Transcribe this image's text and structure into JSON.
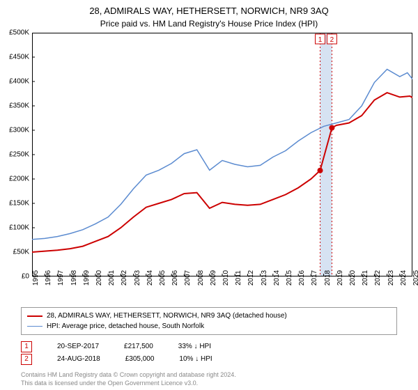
{
  "title": "28, ADMIRALS WAY, HETHERSETT, NORWICH, NR9 3AQ",
  "subtitle": "Price paid vs. HM Land Registry's House Price Index (HPI)",
  "chart": {
    "type": "line",
    "background_color": "#ffffff",
    "ylim": [
      0,
      500
    ],
    "ytick_step": 50,
    "y_prefix": "£",
    "y_suffix": "K",
    "x_years": [
      1995,
      1996,
      1997,
      1998,
      1999,
      2000,
      2001,
      2002,
      2003,
      2004,
      2005,
      2006,
      2007,
      2008,
      2009,
      2010,
      2011,
      2012,
      2013,
      2014,
      2015,
      2016,
      2017,
      2018,
      2019,
      2020,
      2021,
      2022,
      2023,
      2024,
      2025
    ],
    "series": [
      {
        "id": "property",
        "label": "28, ADMIRALS WAY, HETHERSETT, NORWICH, NR9 3AQ (detached house)",
        "color": "#cc0000",
        "width": 2,
        "points": [
          [
            1995,
            50
          ],
          [
            1996,
            52
          ],
          [
            1997,
            54
          ],
          [
            1998,
            57
          ],
          [
            1999,
            62
          ],
          [
            2000,
            72
          ],
          [
            2001,
            82
          ],
          [
            2002,
            100
          ],
          [
            2003,
            122
          ],
          [
            2004,
            142
          ],
          [
            2005,
            150
          ],
          [
            2006,
            158
          ],
          [
            2007,
            170
          ],
          [
            2008,
            172
          ],
          [
            2009,
            140
          ],
          [
            2010,
            152
          ],
          [
            2011,
            148
          ],
          [
            2012,
            146
          ],
          [
            2013,
            148
          ],
          [
            2014,
            158
          ],
          [
            2015,
            168
          ],
          [
            2016,
            182
          ],
          [
            2017,
            200
          ],
          [
            2017.72,
            217.5
          ],
          [
            2018.65,
            305
          ],
          [
            2019,
            310
          ],
          [
            2020,
            315
          ],
          [
            2021,
            330
          ],
          [
            2022,
            362
          ],
          [
            2023,
            377
          ],
          [
            2024,
            368
          ],
          [
            2024.8,
            370
          ],
          [
            2025,
            367
          ]
        ]
      },
      {
        "id": "hpi",
        "label": "HPI: Average price, detached house, South Norfolk",
        "color": "#5b8bd0",
        "width": 1.5,
        "points": [
          [
            1995,
            76
          ],
          [
            1996,
            78
          ],
          [
            1997,
            82
          ],
          [
            1998,
            88
          ],
          [
            1999,
            96
          ],
          [
            2000,
            108
          ],
          [
            2001,
            122
          ],
          [
            2002,
            148
          ],
          [
            2003,
            180
          ],
          [
            2004,
            208
          ],
          [
            2005,
            218
          ],
          [
            2006,
            232
          ],
          [
            2007,
            252
          ],
          [
            2008,
            260
          ],
          [
            2009,
            218
          ],
          [
            2010,
            238
          ],
          [
            2011,
            230
          ],
          [
            2012,
            225
          ],
          [
            2013,
            228
          ],
          [
            2014,
            245
          ],
          [
            2015,
            258
          ],
          [
            2016,
            278
          ],
          [
            2017,
            295
          ],
          [
            2018,
            308
          ],
          [
            2019,
            315
          ],
          [
            2020,
            322
          ],
          [
            2021,
            350
          ],
          [
            2022,
            398
          ],
          [
            2023,
            425
          ],
          [
            2024,
            410
          ],
          [
            2024.6,
            418
          ],
          [
            2025,
            405
          ]
        ]
      }
    ],
    "transactions": [
      {
        "n": 1,
        "year": 2017.72,
        "value": 217.5,
        "color": "#cc0000",
        "date": "20-SEP-2017",
        "price": "£217,500",
        "delta": "33% ↓ HPI"
      },
      {
        "n": 2,
        "year": 2018.65,
        "value": 305,
        "color": "#cc0000",
        "date": "24-AUG-2018",
        "price": "£305,000",
        "delta": "10% ↓ HPI"
      }
    ],
    "marker_line_color": "#cc0000",
    "marker_band_color": "#d6e2f2",
    "badge_fill": "#ffffff"
  },
  "footer_line1": "Contains HM Land Registry data © Crown copyright and database right 2024.",
  "footer_line2": "This data is licensed under the Open Government Licence v3.0.",
  "footer_color": "#888888"
}
